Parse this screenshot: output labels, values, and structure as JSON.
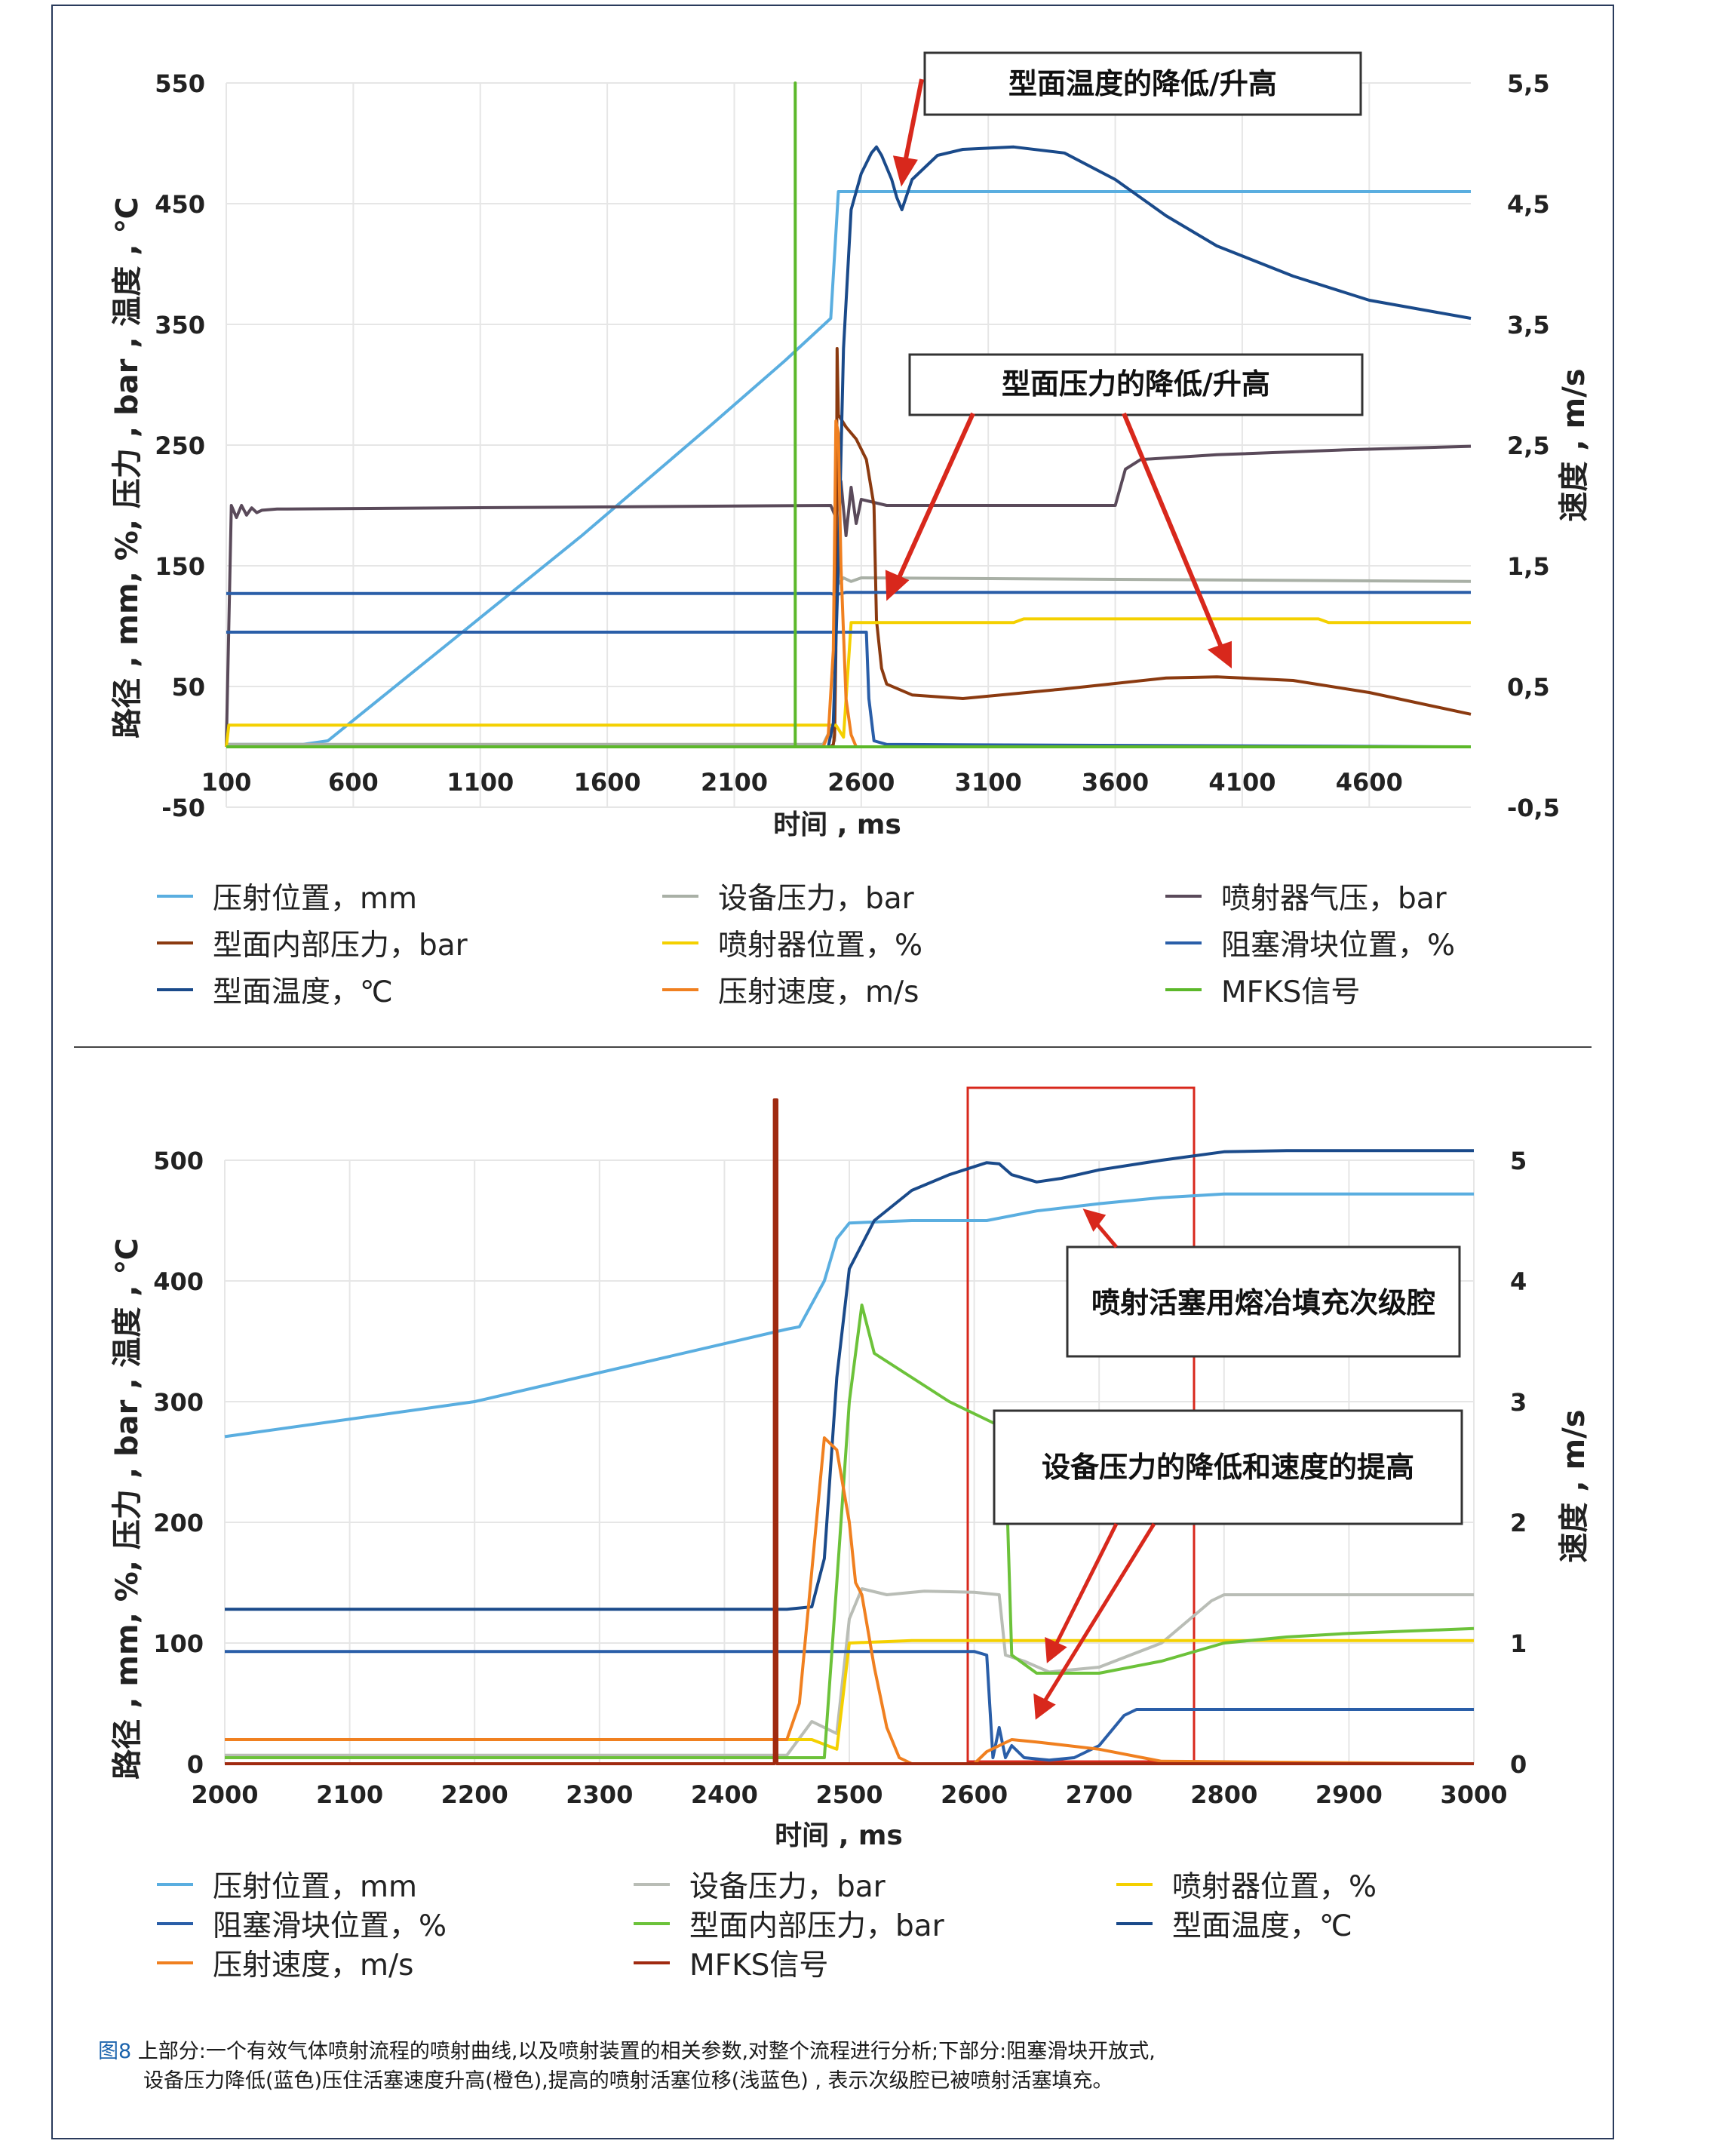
{
  "charts": [
    {
      "type": "line",
      "xlabel": "时间 , ms",
      "ylabel_left": "路径 , mm, %, 压力 , bar , 温度 , ℃",
      "ylabel_right": "速度 , m/s",
      "x_ticks": [
        "100",
        "600",
        "1100",
        "1600",
        "2100",
        "2600",
        "3100",
        "3600",
        "4100",
        "4600"
      ],
      "y_left_ticks": [
        "550",
        "450",
        "350",
        "250",
        "150",
        "50",
        "-50"
      ],
      "y_right_ticks": [
        "5,5",
        "4,5",
        "3,5",
        "2,5",
        "1,5",
        "0,5",
        "-0,5"
      ],
      "callouts": [
        "型面温度的降低/升高",
        "型面压力的降低/升高"
      ],
      "legend": [
        {
          "label": "压射位置，mm",
          "color": "#5aaee0"
        },
        {
          "label": "设备压力，bar",
          "color": "#a9b0a6"
        },
        {
          "label": "喷射器气压，bar",
          "color": "#5a4a5a"
        },
        {
          "label": "型面内部压力，bar",
          "color": "#8b3a10"
        },
        {
          "label": "喷射器位置，%",
          "color": "#f4d000"
        },
        {
          "label": "阻塞滑块位置，%",
          "color": "#2a5ea8"
        },
        {
          "label": "型面温度，℃",
          "color": "#1a4a8a"
        },
        {
          "label": "压射速度，m/s",
          "color": "#f08020"
        },
        {
          "label": "MFKS信号",
          "color": "#5cb82a"
        }
      ]
    },
    {
      "type": "line",
      "xlabel": "时间 , ms",
      "ylabel_left": "路径 , mm, %, 压力 , bar , 温度 , ℃",
      "ylabel_right": "速度 , m/s",
      "x_ticks": [
        "2000",
        "2100",
        "2200",
        "2300",
        "2400",
        "2500",
        "2600",
        "2700",
        "2800",
        "2900",
        "3000"
      ],
      "y_left_ticks": [
        "500",
        "400",
        "300",
        "200",
        "100",
        "0"
      ],
      "y_right_ticks": [
        "5",
        "4",
        "3",
        "2",
        "1",
        "0"
      ],
      "callouts": [
        "喷射活塞用熔冶填充次级腔",
        "设备压力的降低和速度的提高"
      ],
      "legend": [
        {
          "label": "压射位置，mm",
          "color": "#5aaee0"
        },
        {
          "label": "设备压力，bar",
          "color": "#b9bdb6"
        },
        {
          "label": "喷射器位置，%",
          "color": "#f4d000"
        },
        {
          "label": "阻塞滑块位置，%",
          "color": "#2a5ea8"
        },
        {
          "label": "型面内部压力，bar",
          "color": "#6cc23a"
        },
        {
          "label": "型面温度，℃",
          "color": "#1a4a8a"
        },
        {
          "label": "压射速度，m/s",
          "color": "#f08020"
        },
        {
          "label": "MFKS信号",
          "color": "#a02a10"
        }
      ]
    }
  ],
  "chart_data": [
    {
      "type": "line",
      "xlim": [
        100,
        5000
      ],
      "ylim_left": [
        -50,
        550
      ],
      "ylim_right": [
        -0.5,
        5.5
      ],
      "series": [
        {
          "name": "压射位置，mm",
          "color": "#5aaee0",
          "axis": "left",
          "x": [
            100,
            400,
            500,
            1000,
            1500,
            2000,
            2300,
            2480,
            2510,
            2550,
            5000
          ],
          "y": [
            2,
            2,
            5,
            90,
            175,
            265,
            320,
            355,
            460,
            460,
            460
          ]
        },
        {
          "name": "设备压力，bar",
          "color": "#a9b0a6",
          "axis": "left",
          "x": [
            100,
            2450,
            2480,
            2495,
            2500,
            2510,
            2530,
            2560,
            2600,
            5000
          ],
          "y": [
            2,
            2,
            15,
            5,
            140,
            135,
            140,
            137,
            140,
            137
          ]
        },
        {
          "name": "喷射器气压，bar",
          "color": "#5a4a5a",
          "axis": "left",
          "x": [
            100,
            120,
            140,
            160,
            180,
            200,
            220,
            240,
            300,
            2480,
            2500,
            2520,
            2540,
            2560,
            2580,
            2600,
            2700,
            3600,
            3640,
            3700,
            4000,
            4500,
            5000
          ],
          "y": [
            0,
            200,
            190,
            200,
            192,
            198,
            194,
            196,
            197,
            200,
            190,
            220,
            175,
            215,
            185,
            205,
            200,
            200,
            230,
            238,
            242,
            246,
            249
          ]
        },
        {
          "name": "型面内部压力，bar",
          "color": "#8b3a10",
          "axis": "left",
          "x": [
            100,
            2480,
            2490,
            2495,
            2500,
            2505,
            2510,
            2540,
            2580,
            2620,
            2650,
            2660,
            2680,
            2700,
            2800,
            3000,
            3400,
            3800,
            4000,
            4300,
            4600,
            5000
          ],
          "y": [
            0,
            0,
            2,
            10,
            80,
            330,
            275,
            265,
            255,
            238,
            200,
            105,
            65,
            52,
            43,
            40,
            48,
            57,
            58,
            55,
            45,
            27
          ]
        },
        {
          "name": "喷射器位置，%",
          "color": "#f4d000",
          "axis": "left",
          "x": [
            100,
            110,
            2500,
            2530,
            2560,
            3000,
            3200,
            3240,
            4400,
            4440,
            5000
          ],
          "y": [
            0,
            18,
            18,
            8,
            103,
            103,
            103,
            106,
            106,
            103,
            103
          ]
        },
        {
          "name": "阻塞滑块位置，%",
          "color": "#2a5ea8",
          "axis": "left",
          "x": [
            100,
            2480,
            2500,
            2540,
            2560,
            2620,
            2640,
            2650,
            2660,
            2680,
            5000
          ],
          "y": [
            127,
            127,
            126,
            128,
            128,
            128,
            128,
            128,
            128,
            128,
            128
          ]
        },
        {
          "name": "阻塞滑块位置，% (2)",
          "color": "#2a5ea8",
          "axis": "left",
          "x": [
            100,
            2580,
            2585,
            2620,
            2630,
            2650,
            2700,
            5000
          ],
          "y": [
            95,
            95,
            95,
            95,
            40,
            5,
            2,
            0
          ]
        },
        {
          "name": "型面温度，℃",
          "color": "#1a4a8a",
          "axis": "left",
          "x": [
            100,
            2470,
            2490,
            2510,
            2530,
            2560,
            2600,
            2640,
            2660,
            2680,
            2720,
            2740,
            2760,
            2800,
            2900,
            3000,
            3200,
            3400,
            3600,
            3800,
            4000,
            4300,
            4600,
            5000
          ],
          "y": [
            0,
            0,
            20,
            150,
            330,
            445,
            475,
            492,
            497,
            490,
            470,
            455,
            445,
            470,
            490,
            495,
            497,
            492,
            470,
            440,
            415,
            390,
            370,
            355
          ]
        },
        {
          "name": "压射速度，m/s",
          "color": "#f08020",
          "axis": "right",
          "x": [
            100,
            2450,
            2470,
            2490,
            2500,
            2510,
            2520,
            2540,
            2560,
            2580,
            5000
          ],
          "y": [
            0,
            0,
            0.1,
            0.8,
            2.7,
            2.6,
            1.5,
            0.4,
            0.1,
            0,
            0
          ]
        },
        {
          "name": "MFKS信号",
          "color": "#5cb82a",
          "axis": "left",
          "x": [
            100,
            2340,
            2340,
            2340,
            2340,
            2500,
            5000
          ],
          "y": [
            0,
            0,
            550,
            0,
            0,
            0,
            0
          ]
        }
      ]
    },
    {
      "type": "line",
      "xlim": [
        2000,
        3000
      ],
      "ylim_left": [
        0,
        500
      ],
      "ylim_right": [
        0,
        5
      ],
      "series": [
        {
          "name": "压射位置，mm",
          "color": "#5aaee0",
          "axis": "left",
          "x": [
            2000,
            2200,
            2400,
            2450,
            2460,
            2480,
            2490,
            2500,
            2550,
            2610,
            2650,
            2700,
            2750,
            2800,
            2900,
            3000
          ],
          "y": [
            271,
            300,
            348,
            360,
            362,
            400,
            435,
            448,
            450,
            450,
            458,
            464,
            469,
            472,
            472,
            472
          ]
        },
        {
          "name": "设备压力，bar",
          "color": "#b9bdb6",
          "axis": "left",
          "x": [
            2000,
            2450,
            2470,
            2490,
            2500,
            2510,
            2530,
            2560,
            2600,
            2620,
            2625,
            2640,
            2660,
            2700,
            2750,
            2790,
            2800,
            2900,
            3000
          ],
          "y": [
            7,
            7,
            35,
            25,
            120,
            145,
            140,
            143,
            142,
            140,
            90,
            85,
            76,
            80,
            100,
            135,
            140,
            140,
            140
          ]
        },
        {
          "name": "喷射器位置，%",
          "color": "#f4d000",
          "axis": "left",
          "x": [
            2000,
            2470,
            2490,
            2500,
            2550,
            3000
          ],
          "y": [
            20,
            20,
            12,
            100,
            102,
            102
          ]
        },
        {
          "name": "阻塞滑块位置，%",
          "color": "#2a5ea8",
          "axis": "left",
          "x": [
            2000,
            2600,
            2610,
            2615,
            2620,
            2625,
            2630,
            2640,
            2660,
            2680,
            2700,
            2720,
            2730,
            3000
          ],
          "y": [
            93,
            93,
            90,
            5,
            30,
            5,
            15,
            5,
            3,
            5,
            15,
            40,
            45,
            45
          ]
        },
        {
          "name": "型面内部压力，bar",
          "color": "#6cc23a",
          "axis": "left",
          "x": [
            2000,
            2480,
            2490,
            2500,
            2510,
            2520,
            2550,
            2580,
            2600,
            2610,
            2620,
            2625,
            2630,
            2650,
            2700,
            2750,
            2800,
            2850,
            2900,
            3000
          ],
          "y": [
            5,
            5,
            150,
            300,
            380,
            340,
            320,
            300,
            290,
            285,
            280,
            260,
            90,
            75,
            75,
            85,
            100,
            105,
            108,
            112
          ]
        },
        {
          "name": "型面温度，℃",
          "color": "#1a4a8a",
          "axis": "left",
          "x": [
            2000,
            2450,
            2470,
            2480,
            2490,
            2500,
            2520,
            2550,
            2580,
            2610,
            2620,
            2630,
            2650,
            2670,
            2700,
            2750,
            2800,
            2850,
            2900,
            3000
          ],
          "y": [
            128,
            128,
            130,
            170,
            320,
            410,
            450,
            475,
            488,
            498,
            497,
            488,
            482,
            485,
            492,
            500,
            507,
            508,
            508,
            508
          ]
        },
        {
          "name": "压射速度，m/s",
          "color": "#f08020",
          "axis": "right",
          "x": [
            2000,
            2450,
            2460,
            2470,
            2480,
            2490,
            2500,
            2505,
            2510,
            2520,
            2530,
            2540,
            2550,
            2600,
            2610,
            2630,
            2650,
            2700,
            2750,
            3000
          ],
          "y": [
            0.2,
            0.2,
            0.5,
            1.6,
            2.7,
            2.6,
            2.0,
            1.5,
            1.4,
            0.8,
            0.3,
            0.05,
            0,
            0,
            0.1,
            0.2,
            0.18,
            0.12,
            0.02,
            0
          ]
        },
        {
          "name": "MFKS信号",
          "color": "#a02a10",
          "axis": "left",
          "x": [
            2000,
            2440,
            2440,
            2442,
            2442,
            3000
          ],
          "y": [
            0,
            0,
            550,
            550,
            0,
            0
          ]
        }
      ]
    }
  ],
  "caption": {
    "figure": "图8",
    "line1": " 上部分:一个有效气体喷射流程的喷射曲线,以及喷射装置的相关参数,对整个流程进行分析;下部分:阻塞滑块开放式,",
    "line2": "设备压力降低(蓝色)压住活塞速度升高(橙色),提高的喷射活塞位移(浅蓝色) , 表示次级腔已被喷射活塞填充。"
  }
}
